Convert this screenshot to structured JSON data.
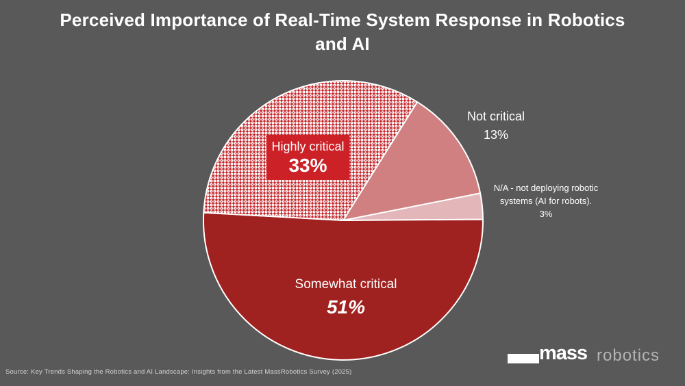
{
  "page": {
    "background_color": "#595959"
  },
  "title": {
    "line1": "Perceived Importance of Real-Time System Response in Robotics",
    "line2": "and AI"
  },
  "chart_data": {
    "type": "pie",
    "title": "Perceived Importance of Real-Time System Response in Robotics and AI",
    "start_angle_deg": 32,
    "direction": "clockwise",
    "legend_position": "none",
    "slice_border_color": "#ffffff",
    "segments": [
      {
        "label": "Not critical",
        "value": 13,
        "color": "#d08080",
        "fill_style": "solid"
      },
      {
        "label": "N/A - not deploying robotic systems (AI for robots).",
        "value": 3,
        "color": "#e3b6ba",
        "fill_style": "solid"
      },
      {
        "label": "Somewhat critical",
        "value": 51,
        "color": "#a02220",
        "fill_style": "solid"
      },
      {
        "label": "Highly critical",
        "value": 33,
        "color": "#c2252a",
        "fill_style": "white-dots-pattern"
      }
    ],
    "pattern_colors": {
      "background": "#c2252a",
      "dot": "#ffffff",
      "dot_core": "#c2252a"
    }
  },
  "labels": {
    "highly": {
      "name": "Highly critical",
      "pct": "33%",
      "box_color": "#cb2127"
    },
    "not_critical": {
      "name": "Not critical",
      "pct": "13%"
    },
    "na": {
      "line1": "N/A - not deploying robotic",
      "line2": "systems (AI for robots).",
      "pct": "3%"
    },
    "somewhat": {
      "name": "Somewhat critical",
      "pct": "51%"
    }
  },
  "footer": {
    "source": "Source: Key Trends Shaping the Robotics and AI Landscape: Insights from the Latest MassRobotics Survey (2025)"
  },
  "logo": {
    "mass": "mass",
    "robotics": "robotics"
  }
}
